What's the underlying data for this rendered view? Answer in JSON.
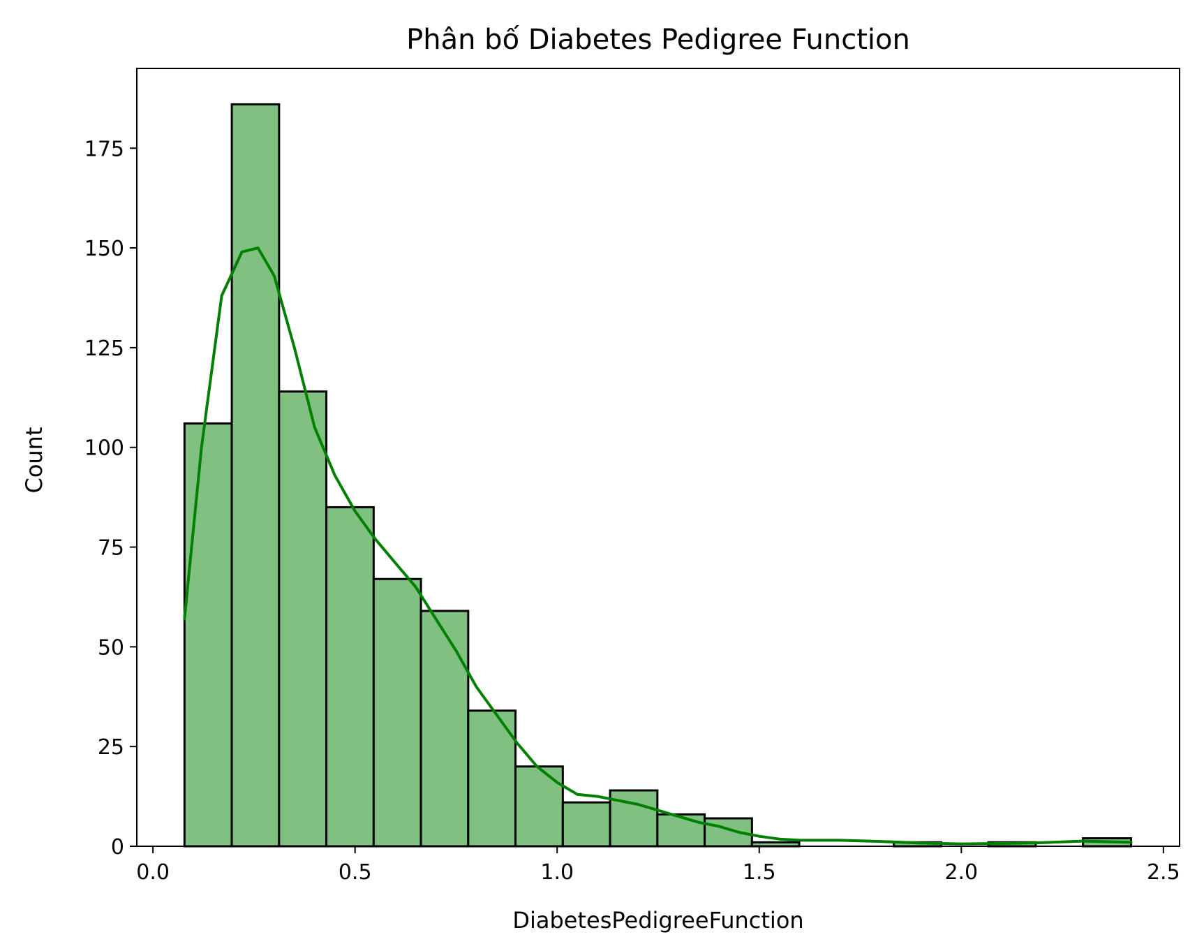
{
  "chart_data": {
    "type": "bar",
    "title": "Phân bố Diabetes Pedigree Function",
    "xlabel": "DiabetesPedigreeFunction",
    "ylabel": "Count",
    "xlim": [
      -0.04,
      2.54
    ],
    "ylim": [
      0,
      195
    ],
    "xticks": [
      0.0,
      0.5,
      1.0,
      1.5,
      2.0,
      2.5
    ],
    "xtick_labels": [
      "0.0",
      "0.5",
      "1.0",
      "1.5",
      "2.0",
      "2.5"
    ],
    "yticks": [
      0,
      25,
      50,
      75,
      100,
      125,
      150,
      175
    ],
    "ytick_labels": [
      "0",
      "25",
      "50",
      "75",
      "100",
      "125",
      "150",
      "175"
    ],
    "bin_edges": [
      0.078,
      0.195,
      0.312,
      0.429,
      0.546,
      0.663,
      0.78,
      0.897,
      1.014,
      1.131,
      1.248,
      1.365,
      1.482,
      1.599,
      1.716,
      1.833,
      1.95,
      2.067,
      2.184,
      2.301,
      2.42
    ],
    "values": [
      106,
      186,
      114,
      85,
      67,
      59,
      34,
      20,
      11,
      14,
      8,
      7,
      1,
      0,
      0,
      1,
      0,
      1,
      0,
      2
    ],
    "kde": {
      "x": [
        0.078,
        0.12,
        0.17,
        0.22,
        0.26,
        0.3,
        0.35,
        0.4,
        0.45,
        0.5,
        0.55,
        0.6,
        0.65,
        0.7,
        0.75,
        0.8,
        0.85,
        0.9,
        0.95,
        1.0,
        1.05,
        1.1,
        1.15,
        1.2,
        1.25,
        1.3,
        1.35,
        1.4,
        1.45,
        1.5,
        1.55,
        1.6,
        1.7,
        1.8,
        1.9,
        2.0,
        2.1,
        2.2,
        2.3,
        2.42
      ],
      "y": [
        57,
        100,
        138,
        149,
        150,
        143,
        125,
        105,
        93,
        84,
        77,
        71,
        65,
        57,
        49,
        40,
        33,
        26,
        20,
        16,
        13,
        12.5,
        11.5,
        10.5,
        9,
        7.5,
        6,
        5,
        3.5,
        2.5,
        1.8,
        1.5,
        1.5,
        1.2,
        0.8,
        0.6,
        0.7,
        0.9,
        1.3,
        1
      ]
    },
    "colors": {
      "bar_fill": "#80c080",
      "bar_edge": "#000000",
      "kde_line": "#008000"
    },
    "grid": false,
    "legend": "none"
  }
}
